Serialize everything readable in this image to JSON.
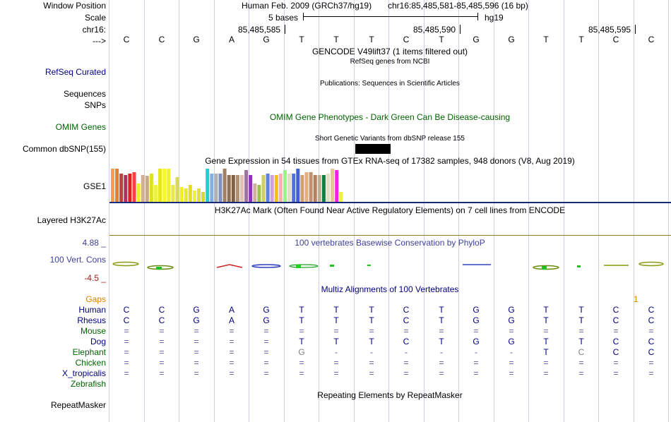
{
  "labels": {
    "window_position": "Window Position",
    "scale": "Scale",
    "chrom": "chr16:",
    "strand": "--->",
    "refseq": "RefSeq Curated",
    "sequences": "Sequences",
    "snps": "SNPs",
    "omim": "OMIM Genes",
    "dbsnp": "Common dbSNP(155)",
    "gse1": "GSE1",
    "h3k27ac": "Layered H3K27Ac",
    "cons_max": "4.88 _",
    "cons": "100 Vert. Cons",
    "cons_min": "-4.5 _",
    "gaps": "Gaps",
    "species": [
      "Human",
      "Rhesus",
      "Mouse",
      "Dog",
      "Elephant",
      "Chicken",
      "X_tropicalis",
      "Zebrafish"
    ],
    "repeatmasker": "RepeatMasker"
  },
  "header": {
    "assembly": "Human Feb. 2009 (GRCh37/hg19)",
    "position": "chr16:85,485,581-85,485,596 (16 bp)",
    "scale_text": "5 bases",
    "scale_db": "hg19",
    "coords": [
      "85,485,585",
      "85,485,590",
      "85,485,595"
    ]
  },
  "bases": [
    "C",
    "C",
    "G",
    "A",
    "G",
    "T",
    "T",
    "T",
    "C",
    "T",
    "G",
    "G",
    "T",
    "T",
    "C",
    "C"
  ],
  "titles": {
    "gencode": "GENCODE V49lift37 (1 items filtered out)",
    "refseq": "RefSeq genes from NCBI",
    "publications": "Publications: Sequences in Scientific Articles",
    "omim": "OMIM Gene Phenotypes - Dark Green Can Be Disease-causing",
    "dbsnp": "Short Genetic Variants from dbSNP release 155",
    "gtex": "Gene Expression in 54 tissues from GTEx RNA-seq of 17382 samples, 948 donors (V8, Aug 2019)",
    "h3k27ac": "H3K27Ac Mark (Often Found Near Active Regulatory Elements) on 7 cell lines from ENCODE",
    "phylop": "100 vertebrates Basewise Conservation by PhyloP",
    "multiz": "Multiz Alignments of 100 Vertebrates",
    "repeatmasker": "Repeating Elements by RepeatMasker"
  },
  "gaps_mark": "1",
  "alignment": {
    "Human": [
      "C",
      "C",
      "G",
      "A",
      "G",
      "T",
      "T",
      "T",
      "C",
      "T",
      "G",
      "G",
      "T",
      "T",
      "C",
      "C"
    ],
    "Rhesus": [
      "C",
      "C",
      "G",
      "A",
      "G",
      "T",
      "T",
      "T",
      "C",
      "T",
      "G",
      "G",
      "T",
      "T",
      "C",
      "C"
    ],
    "Mouse": [
      "=",
      "=",
      "=",
      "=",
      "=",
      "=",
      "=",
      "=",
      "=",
      "=",
      "=",
      "=",
      "=",
      "=",
      "=",
      "="
    ],
    "Dog": [
      "=",
      "=",
      "=",
      "=",
      "=",
      "T",
      "T",
      "T",
      "C",
      "T",
      "G",
      "G",
      "T",
      "T",
      "C",
      "C"
    ],
    "Elephant": [
      "=",
      "=",
      "=",
      "=",
      "=",
      "G",
      "-",
      "-",
      "-",
      "-",
      "-",
      "-",
      "T",
      "C",
      "C",
      "C"
    ],
    "Chicken": [
      "=",
      "=",
      "=",
      "=",
      "=",
      "=",
      "=",
      "=",
      "=",
      "=",
      "=",
      "=",
      "=",
      "=",
      "=",
      "="
    ],
    "X_tropicalis": [
      "=",
      "=",
      "=",
      "=",
      "=",
      "=",
      "=",
      "=",
      "=",
      "=",
      "=",
      "=",
      "=",
      "=",
      "=",
      "="
    ],
    "Zebrafish": [
      "",
      "",
      "",
      "",
      "",
      "",
      "",
      "",
      "",
      "",
      "",
      "",
      "",
      "",
      "",
      ""
    ]
  },
  "gtex_values": [
    1.0,
    1.0,
    0.85,
    0.8,
    0.85,
    0.9,
    0.55,
    0.8,
    0.78,
    0.85,
    0.5,
    1.0,
    1.0,
    1.0,
    0.5,
    0.75,
    0.45,
    0.4,
    0.5,
    0.35,
    0.4,
    0.3,
    1.0,
    0.85,
    0.85,
    0.85,
    1.0,
    0.8,
    0.8,
    0.8,
    0.8,
    0.95,
    0.8,
    0.55,
    0.5,
    0.8,
    0.85,
    0.8,
    0.8,
    0.85,
    0.95,
    0.85,
    0.85,
    1.0,
    0.8,
    0.9,
    0.9,
    0.8,
    0.8,
    0.8,
    0.85,
    1.0,
    0.95,
    0.3
  ],
  "gtex_colors": [
    "#f0a050",
    "#e08030",
    "#c04040",
    "#b03060",
    "#e02020",
    "#ff4040",
    "#f0f020",
    "#d0b090",
    "#c8a888",
    "#e0e020",
    "#f0f040",
    "#e8e818",
    "#f8f828",
    "#f0f030",
    "#e8e848",
    "#d8d860",
    "#f0f020",
    "#e8e830",
    "#e0e020",
    "#f0f040",
    "#e0e040",
    "#d8d830",
    "#20d0d0",
    "#80b0e0",
    "#b0b0b0",
    "#8090c0",
    "#a08060",
    "#907050",
    "#806040",
    "#b09070",
    "#e0c0b0",
    "#a070a0",
    "#9030c0",
    "#d0b0a0",
    "#a0c050",
    "#d0d060",
    "#6080e0",
    "#d0a0e0",
    "#f0c020",
    "#ffb0b0",
    "#a0f090",
    "#e0e0c0",
    "#5070e0",
    "#4060d0",
    "#d0a070",
    "#e0b080",
    "#c09070",
    "#b08060",
    "#c0b090",
    "#108040",
    "#e0e0c0",
    "#e0c890",
    "#f020f0",
    "#f0f040"
  ],
  "colors": {
    "cons": "#4040a0",
    "cons_min": "#a02020",
    "omim": "#006400",
    "gaps": "#e08000",
    "species_human": "#000080",
    "species_other": "#006400"
  }
}
